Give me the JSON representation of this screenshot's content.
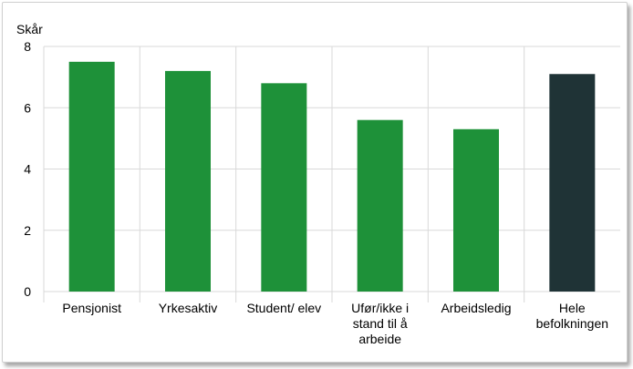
{
  "chart_data": {
    "type": "bar",
    "ylabel": "Skår",
    "ylim": [
      0,
      8
    ],
    "yticks": [
      0,
      2,
      4,
      6,
      8
    ],
    "grid": true,
    "categories": [
      [
        "Pensjonist"
      ],
      [
        "Yrkesaktiv"
      ],
      [
        "Student/ elev"
      ],
      [
        "Ufør/ikke i",
        "stand til å",
        "arbeide"
      ],
      [
        "Arbeidsledig"
      ],
      [
        "Hele",
        "befolkningen"
      ]
    ],
    "values": [
      7.5,
      7.2,
      6.8,
      5.6,
      5.3,
      7.1
    ],
    "colors": [
      "#1e9139",
      "#1e9139",
      "#1e9139",
      "#1e9139",
      "#1e9139",
      "#1f3336"
    ]
  }
}
